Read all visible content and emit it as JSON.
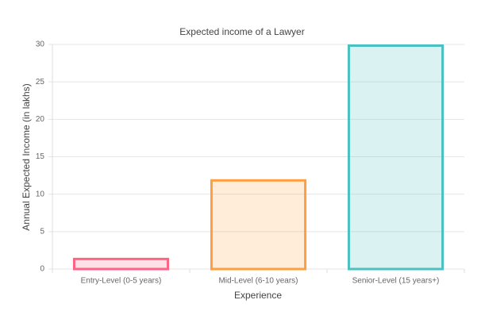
{
  "chart_data": {
    "type": "bar",
    "title": "Expected income of a Lawyer",
    "x_label": "Experience",
    "y_label": "Annual Expected Income (in lakhs)",
    "categories": [
      "Entry-Level (0-5 years)",
      "Mid-Level (6-10 years)",
      "Senior-Level (15 years+)"
    ],
    "values": [
      1.5,
      12,
      30
    ],
    "colors": [
      "#ff6384",
      "#ff9f40",
      "#4bc0c0"
    ],
    "ylim": [
      0,
      30
    ],
    "yticks": [
      0,
      5,
      10,
      15,
      20,
      25,
      30
    ],
    "grid": true
  }
}
